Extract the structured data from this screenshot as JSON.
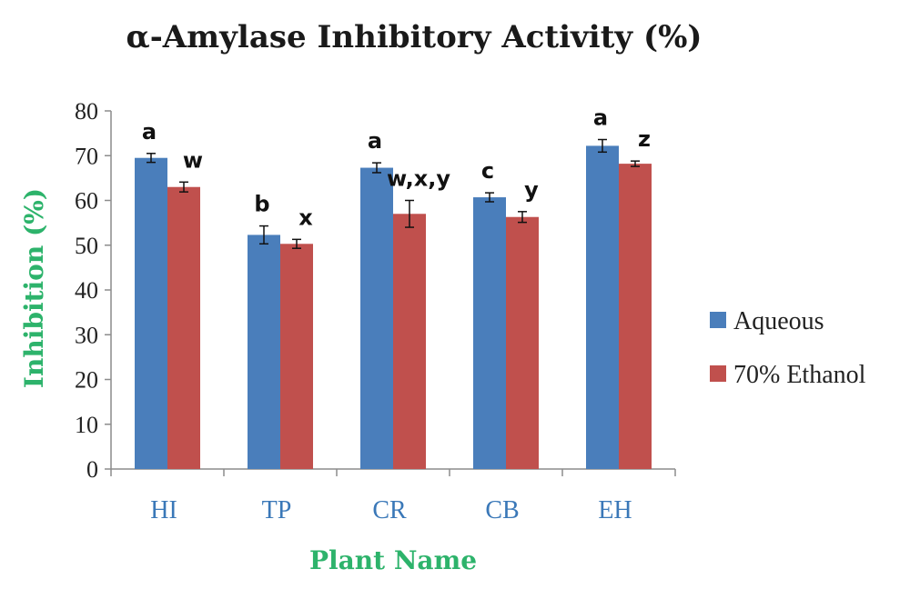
{
  "chart_data": {
    "type": "bar",
    "title": "α-Amylase Inhibitory Activity (%)",
    "xlabel": "Plant Name",
    "ylabel": "Inhibition  (%)",
    "categories": [
      "HI",
      "TP",
      "CR",
      "CB",
      "EH"
    ],
    "ylim": [
      0,
      80
    ],
    "yticks": [
      0,
      10,
      20,
      30,
      40,
      50,
      60,
      70,
      80
    ],
    "grid": false,
    "legend_position": "right",
    "series": [
      {
        "name": "Aqueous",
        "color": "#4a7ebb",
        "values": [
          69.5,
          52.3,
          67.3,
          60.7,
          72.2
        ],
        "errors": [
          1.0,
          2.0,
          1.1,
          1.0,
          1.4
        ],
        "labels": [
          "a",
          "b",
          "a",
          "c",
          "a"
        ]
      },
      {
        "name": "70% Ethanol",
        "color": "#c0504d",
        "values": [
          63.0,
          50.3,
          57.0,
          56.3,
          68.2
        ],
        "errors": [
          1.1,
          1.0,
          3.0,
          1.2,
          0.6
        ],
        "labels": [
          "w",
          "x",
          "w,x,y",
          "y",
          "z"
        ]
      }
    ]
  }
}
